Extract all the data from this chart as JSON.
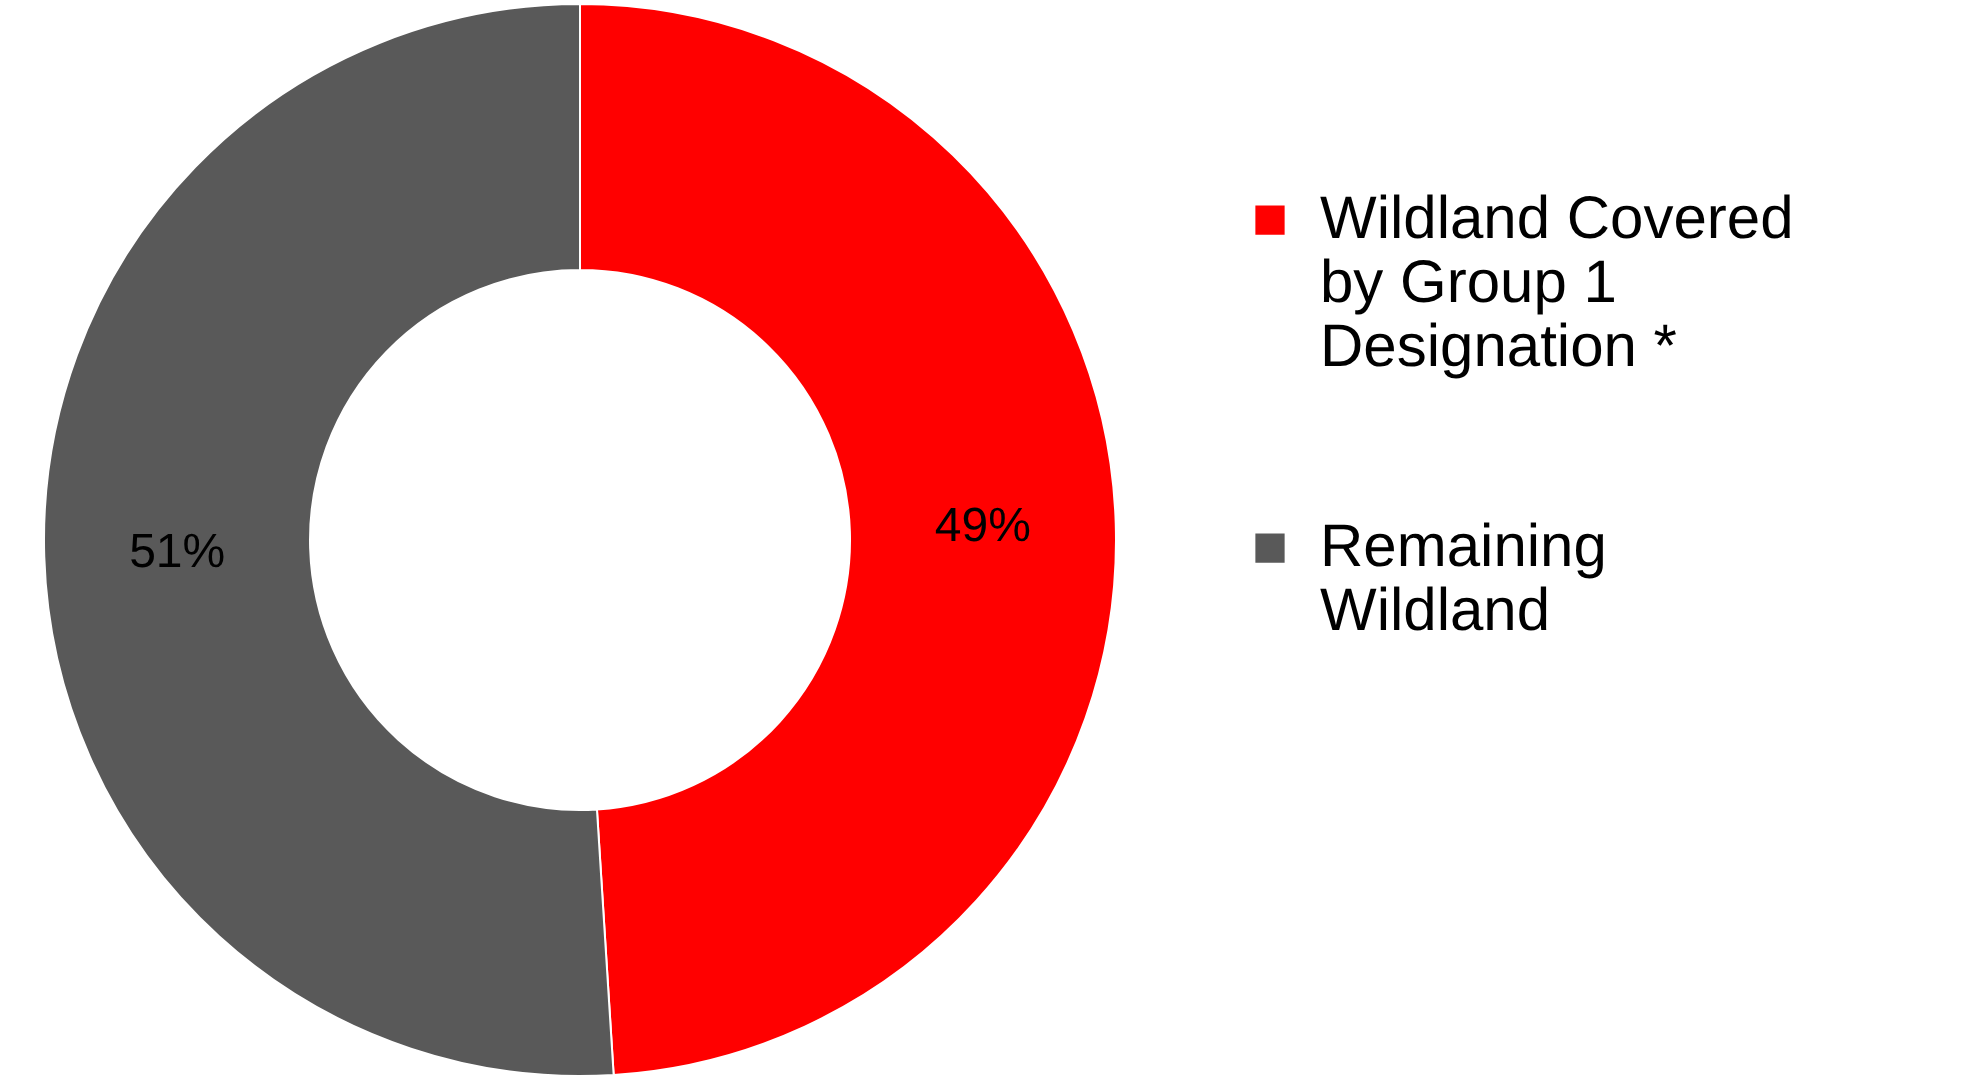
{
  "chart_data": {
    "type": "donut",
    "categories": [
      "Wildland Covered by Group 1 Designation *",
      "Remaining Wildland"
    ],
    "values": [
      49,
      51
    ],
    "colors": [
      "#ff0000",
      "#595959"
    ],
    "value_labels": [
      "49%",
      "51%"
    ],
    "legend": "right"
  }
}
